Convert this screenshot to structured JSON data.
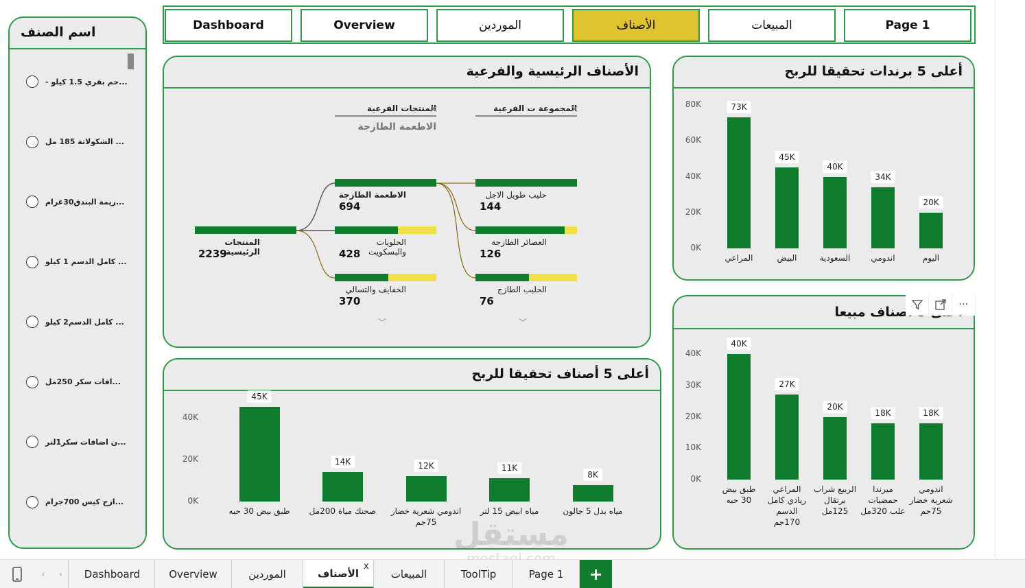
{
  "nav": {
    "buttons": [
      {
        "label": "Dashboard",
        "active": false
      },
      {
        "label": "Overview",
        "active": false
      },
      {
        "label": "الموردين",
        "active": false
      },
      {
        "label": "الأصناف",
        "active": true
      },
      {
        "label": "المبيعات",
        "active": false
      },
      {
        "label": "Page 1",
        "active": false
      }
    ]
  },
  "slicer": {
    "title": "اسم الصنف",
    "items": [
      "...حم بقري 1.5 كيلو -",
      "... الشكولاتة 185 مل",
      "...ريمة البندق30غرام",
      "... كامل الدسم 1 كيلو",
      "... كامل الدسم2 كيلو",
      "...افات سكر 250مل",
      "...ن اضافات سكر1لتر",
      "...ازج كيس 700جرام"
    ]
  },
  "tree": {
    "title": "الأصناف الرئيسية والفرعية",
    "col1_head": "المنتجات الفرعية",
    "col1_sub": "الاطعمة الطازجة",
    "col2_head": "المجموعة ت الفرعية",
    "root": {
      "label": "المنتجات الرئيسية",
      "value": "2239"
    },
    "level1": [
      {
        "label": "الاطعمة الطازجة",
        "value": "694",
        "fraction": 1.0
      },
      {
        "label": "الحلويات والبسكويت",
        "value": "428",
        "fraction": 0.62
      },
      {
        "label": "الخفايف والتسالي",
        "value": "370",
        "fraction": 0.53
      }
    ],
    "level2": [
      {
        "label": "حليب طويل الاجل",
        "value": "144",
        "fraction": 1.0
      },
      {
        "label": "العصائر الطازجة",
        "value": "126",
        "fraction": 0.88
      },
      {
        "label": "الحليب الطازج",
        "value": "76",
        "fraction": 0.53
      }
    ]
  },
  "brands_chart": {
    "title": "أعلى 5 برندات تحقيقا للربح",
    "chart_data": {
      "type": "bar",
      "title": "أعلى 5 برندات تحقيقا للربح",
      "categories": [
        "المراعي",
        "البيض",
        "السعودية",
        "اندومي",
        "اليوم"
      ],
      "values": [
        73,
        45,
        40,
        34,
        20
      ],
      "value_labels": [
        "73K",
        "45K",
        "40K",
        "34K",
        "20K"
      ],
      "yticks": [
        "0K",
        "20K",
        "40K",
        "60K",
        "80K"
      ],
      "ylim": [
        0,
        80
      ]
    }
  },
  "profit_items_chart": {
    "title": "أعلى 5 أصناف تحقيقا للربح",
    "chart_data": {
      "type": "bar",
      "title": "أعلى 5 أصناف تحقيقا للربح",
      "categories": [
        "طبق بيض 30 حبه",
        "صحتك مياة 200مل",
        "اندومي شعرية خضار 75جم",
        "مياه ابيض 15 لتر",
        "مياه بدل 5 جالون"
      ],
      "values": [
        45,
        14,
        12,
        11,
        8
      ],
      "value_labels": [
        "45K",
        "14K",
        "12K",
        "11K",
        "8K"
      ],
      "yticks": [
        "0K",
        "20K",
        "40K"
      ],
      "ylim": [
        0,
        50
      ]
    }
  },
  "sales_items_chart": {
    "title": "أعلى 5 أصناف مبيعا",
    "chart_data": {
      "type": "bar",
      "title": "أعلى 5 أصناف مبيعا",
      "categories": [
        "طبق بيض 30 حبه",
        "المراعي ريادي كامل الدسم 170جم",
        "الربيع شراب برتقال 125مل",
        "ميرندا حمضيات علب 320مل",
        "اندومي شعرية خضار 75جم"
      ],
      "values": [
        40,
        27,
        20,
        18,
        18
      ],
      "value_labels": [
        "40K",
        "27K",
        "20K",
        "18K",
        "18K"
      ],
      "yticks": [
        "0K",
        "10K",
        "20K",
        "30K",
        "40K"
      ],
      "ylim": [
        0,
        40
      ]
    }
  },
  "toolbar": {
    "icons": [
      "filter-icon",
      "focus-mode-icon",
      "more-options-icon"
    ]
  },
  "tabs": {
    "items": [
      "Dashboard",
      "Overview",
      "الموردين",
      "الأصناف",
      "المبيعات",
      "ToolTip",
      "Page 1"
    ],
    "active": "الأصناف",
    "close_glyph": "x",
    "add_glyph": "+"
  },
  "watermark": {
    "arabic": "مستقل",
    "latin": "mostaql.com"
  },
  "colors": {
    "accent": "#2e9a4a",
    "bar": "#107c2e",
    "highlight": "#e0c331",
    "remainder": "#f0e04a"
  }
}
